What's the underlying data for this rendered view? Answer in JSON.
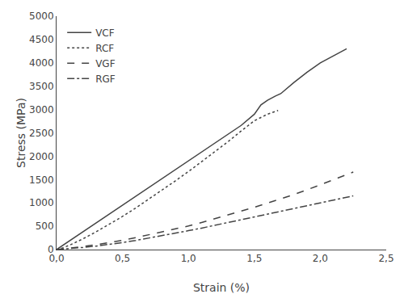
{
  "chart_data": {
    "type": "line",
    "xlabel": "Strain (%)",
    "ylabel": "Stress (MPa)",
    "xlim": [
      0,
      2.5
    ],
    "ylim": [
      0,
      5000
    ],
    "xticks": [
      {
        "value": 0.0,
        "label": "0,0"
      },
      {
        "value": 0.5,
        "label": "0,5"
      },
      {
        "value": 1.0,
        "label": "1,0"
      },
      {
        "value": 1.5,
        "label": "1,5"
      },
      {
        "value": 2.0,
        "label": "2,0"
      },
      {
        "value": 2.5,
        "label": "2,5"
      }
    ],
    "yticks": [
      0,
      500,
      1000,
      1500,
      2000,
      2500,
      3000,
      3500,
      4000,
      4500,
      5000
    ],
    "grid": false,
    "legend": "upper left",
    "series": [
      {
        "name": "VCF",
        "line_style": "solid",
        "color": "#444444",
        "x": [
          0.0,
          0.05,
          0.1,
          0.2,
          0.3,
          0.4,
          0.5,
          0.6,
          0.7,
          0.8,
          0.9,
          1.0,
          1.1,
          1.2,
          1.3,
          1.4,
          1.5,
          1.55,
          1.6,
          1.63,
          1.66,
          1.7,
          1.8,
          1.9,
          2.0,
          2.1,
          2.2
        ],
        "values": [
          0,
          95,
          190,
          380,
          570,
          760,
          950,
          1140,
          1330,
          1520,
          1710,
          1900,
          2090,
          2280,
          2470,
          2660,
          2900,
          3100,
          3200,
          3250,
          3290,
          3340,
          3580,
          3800,
          4000,
          4150,
          4300
        ]
      },
      {
        "name": "RCF",
        "line_style": "dotted",
        "color": "#444444",
        "x": [
          0.0,
          0.05,
          0.1,
          0.2,
          0.3,
          0.4,
          0.5,
          0.6,
          0.7,
          0.8,
          0.9,
          1.0,
          1.1,
          1.2,
          1.3,
          1.4,
          1.5,
          1.6,
          1.65,
          1.68
        ],
        "values": [
          0,
          40,
          95,
          230,
          380,
          540,
          710,
          890,
          1080,
          1270,
          1470,
          1670,
          1880,
          2090,
          2310,
          2540,
          2760,
          2900,
          2950,
          2980
        ]
      },
      {
        "name": "VGF",
        "line_style": "dashed",
        "color": "#444444",
        "x": [
          0.0,
          0.1,
          0.2,
          0.3,
          0.4,
          0.5,
          0.6,
          0.7,
          0.8,
          0.9,
          1.0,
          1.1,
          1.2,
          1.3,
          1.4,
          1.5,
          1.6,
          1.7,
          1.8,
          1.9,
          2.0,
          2.1,
          2.2,
          2.25
        ],
        "values": [
          0,
          30,
          65,
          105,
          150,
          200,
          255,
          315,
          375,
          440,
          505,
          580,
          660,
          740,
          820,
          905,
          995,
          1085,
          1180,
          1280,
          1385,
          1490,
          1600,
          1660
        ]
      },
      {
        "name": "RGF",
        "line_style": "dashdot",
        "color": "#444444",
        "x": [
          0.0,
          0.1,
          0.2,
          0.3,
          0.4,
          0.5,
          0.6,
          0.7,
          0.8,
          0.9,
          1.0,
          1.1,
          1.2,
          1.3,
          1.4,
          1.5,
          1.6,
          1.7,
          1.8,
          1.9,
          2.0,
          2.1,
          2.2,
          2.25
        ],
        "values": [
          0,
          20,
          45,
          75,
          110,
          150,
          195,
          245,
          295,
          350,
          405,
          460,
          520,
          580,
          640,
          700,
          760,
          820,
          880,
          940,
          1000,
          1060,
          1120,
          1150
        ]
      }
    ]
  }
}
